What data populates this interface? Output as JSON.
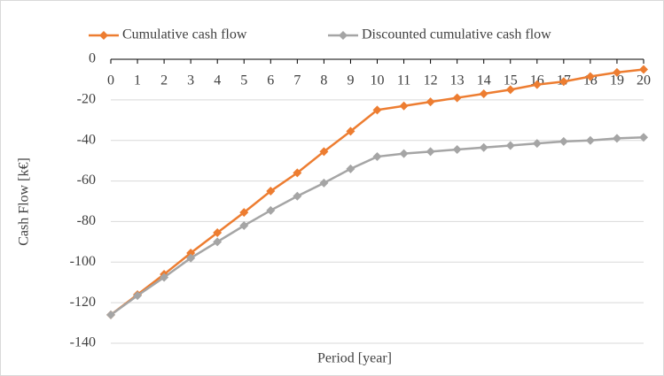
{
  "chart_data": {
    "type": "line",
    "x": [
      0,
      1,
      2,
      3,
      4,
      5,
      6,
      7,
      8,
      9,
      10,
      11,
      12,
      13,
      14,
      15,
      16,
      17,
      18,
      19,
      20
    ],
    "series": [
      {
        "name": "Cumulative cash flow",
        "color": "#ed7d31",
        "values": [
          -126,
          -116,
          -106,
          -95.5,
          -85.5,
          -75.5,
          -65,
          -56,
          -45.5,
          -35.5,
          -25,
          -23,
          -21,
          -19,
          -17,
          -15,
          -12.5,
          -11,
          -8.5,
          -6.5,
          -5
        ]
      },
      {
        "name": "Discounted cumulative cash flow",
        "color": "#a5a5a5",
        "values": [
          -126,
          -116.5,
          -107.5,
          -98,
          -90,
          -82,
          -74.5,
          -67.5,
          -61,
          -54,
          -48,
          -46.5,
          -45.5,
          -44.5,
          -43.5,
          -42.5,
          -41.5,
          -40.5,
          -40,
          -39,
          -38.5
        ]
      }
    ],
    "xlabel": "Period [year]",
    "ylabel": "Cash Flow [k€]",
    "xlim": [
      0,
      20
    ],
    "xticks": [
      0,
      1,
      2,
      3,
      4,
      5,
      6,
      7,
      8,
      9,
      10,
      11,
      12,
      13,
      14,
      15,
      16,
      17,
      18,
      19,
      20
    ],
    "ylim": [
      -140,
      0
    ],
    "yticks": [
      -140,
      -120,
      -100,
      -80,
      -60,
      -40,
      -20,
      0
    ],
    "grid": true,
    "legend": "top"
  }
}
